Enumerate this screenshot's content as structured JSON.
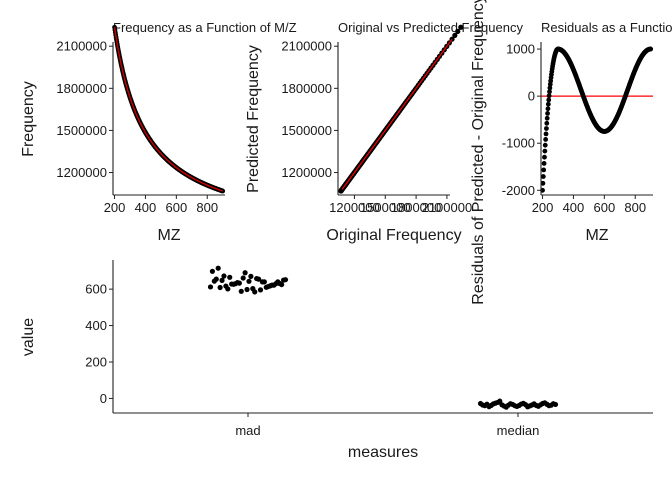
{
  "chart_data": [
    {
      "type": "scatter",
      "title": "Frequency as a Function of M/Z",
      "xlabel": "MZ",
      "ylabel": "Frequency",
      "xlim": [
        190,
        915
      ],
      "ylim": [
        1040000,
        2130000
      ],
      "xticks": [
        200,
        400,
        600,
        800
      ],
      "xtick_labels": [
        "200",
        "400",
        "600",
        "800"
      ],
      "yticks": [
        1200000,
        1500000,
        1800000,
        2100000
      ],
      "ytick_labels": [
        "1200000",
        "1500000",
        "1800000",
        "2100000"
      ],
      "model": "frequency = 3e8 / mz + 735000",
      "mz_range": [
        200,
        900
      ],
      "fit_line_color": "#cc0000",
      "point_color": "#000000"
    },
    {
      "type": "scatter",
      "title": "Original vs Predicted Frequency",
      "xlabel": "Original Frequency",
      "ylabel": "Predicted Frequency",
      "xlim": [
        1040000,
        2130000
      ],
      "ylim": [
        1040000,
        2130000
      ],
      "xticks": [
        1200000,
        1500000,
        1800000,
        2100000
      ],
      "xtick_labels": [
        "1200000",
        "1500000",
        "1800000",
        "2100000"
      ],
      "yticks": [
        1200000,
        1500000,
        1800000,
        2100000
      ],
      "ytick_labels": [
        "1200000",
        "1500000",
        "1800000",
        "2100000"
      ],
      "reference_line": "y = x",
      "line_color": "#ff0000"
    },
    {
      "type": "scatter",
      "title": "Residuals as a Function of M/Z",
      "xlabel": "MZ",
      "ylabel": "Residuals of Predicted - Original Frequency",
      "xlim": [
        190,
        915
      ],
      "ylim": [
        -2100,
        1150
      ],
      "xticks": [
        200,
        400,
        600,
        800
      ],
      "xtick_labels": [
        "200",
        "400",
        "600",
        "800"
      ],
      "yticks": [
        -2000,
        -1000,
        0,
        1000
      ],
      "ytick_labels": [
        "-2000",
        "-1000",
        "0",
        "1000"
      ],
      "reference_line": "y = 0",
      "line_color": "#ff0000"
    },
    {
      "type": "scatter",
      "subtype": "jitter",
      "title": "",
      "xlabel": "measures",
      "ylabel": "value",
      "categories": [
        "mad",
        "median"
      ],
      "ylim": [
        -80,
        760
      ],
      "yticks": [
        0,
        200,
        400,
        600
      ],
      "ytick_labels": [
        "0",
        "200",
        "400",
        "600"
      ],
      "series": [
        {
          "category": "mad",
          "values": [
            612,
            625,
            630,
            618,
            640,
            655,
            603,
            598,
            588,
            630,
            665,
            672,
            715,
            698,
            650,
            640,
            622,
            610,
            596,
            585,
            643,
            661,
            636,
            628,
            617,
            609,
            644,
            652,
            631,
            622,
            614,
            640,
            658,
            670,
            690,
            633,
            627,
            601,
            648,
            655
          ]
        },
        {
          "category": "median",
          "values": [
            -28,
            -36,
            -40,
            -32,
            -45,
            -38,
            -30,
            -26,
            -22,
            -15,
            -35,
            -42,
            -48,
            -37,
            -29,
            -33,
            -40,
            -44,
            -39,
            -31,
            -27,
            -34,
            -46,
            -41,
            -36,
            -30,
            -38,
            -43,
            -35,
            -28,
            -24,
            -32,
            -40,
            -37,
            -29,
            -33
          ]
        }
      ]
    }
  ]
}
